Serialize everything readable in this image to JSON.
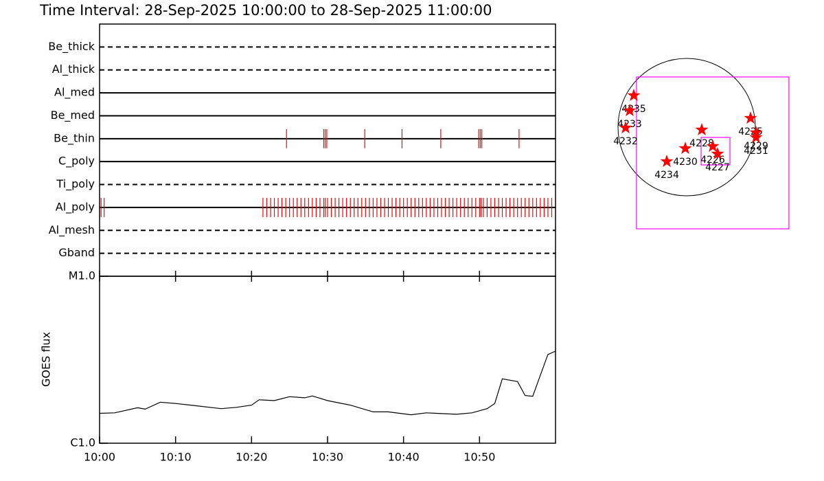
{
  "chart_data": [
    {
      "type": "timeline",
      "title": "Time Interval: 28-Sep-2025 10:00:00 to 28-Sep-2025 11:00:00",
      "xlim": [
        0,
        60
      ],
      "event_color": "#ff0000",
      "rows": [
        {
          "name": "Be_thick",
          "style": "dashed",
          "events": []
        },
        {
          "name": "Al_thick",
          "style": "dashed",
          "events": []
        },
        {
          "name": "Al_med",
          "style": "solid",
          "events": []
        },
        {
          "name": "Be_med",
          "style": "solid",
          "events": []
        },
        {
          "name": "Be_thin",
          "style": "solid",
          "events": [
            24.6,
            29.5,
            29.7,
            29.9,
            34.9,
            39.8,
            44.9,
            49.9,
            50.1,
            50.3,
            55.2
          ]
        },
        {
          "name": "C_poly",
          "style": "solid",
          "events": []
        },
        {
          "name": "Ti_poly",
          "style": "dashed",
          "events": []
        },
        {
          "name": "Al_poly",
          "style": "solid",
          "events": [
            0.2,
            0.6,
            21.5,
            22.0,
            22.5,
            23.0,
            23.5,
            24.0,
            24.5,
            25.0,
            25.5,
            26.0,
            26.5,
            27.0,
            27.5,
            28.0,
            28.5,
            29.0,
            29.5,
            29.7,
            30.0,
            30.5,
            31.0,
            31.5,
            32.0,
            32.5,
            33.0,
            33.5,
            34.0,
            34.5,
            35.0,
            35.5,
            36.0,
            36.5,
            37.0,
            37.5,
            38.0,
            38.5,
            39.0,
            39.5,
            40.0,
            40.5,
            41.0,
            41.5,
            42.0,
            42.5,
            43.0,
            43.5,
            44.0,
            44.5,
            45.0,
            45.5,
            46.0,
            46.5,
            47.0,
            47.5,
            48.0,
            48.5,
            49.0,
            49.5,
            50.0,
            50.2,
            50.5,
            51.0,
            51.5,
            52.0,
            52.5,
            53.0,
            53.5,
            54.0,
            54.5,
            55.0,
            55.5,
            56.0,
            56.5,
            57.0,
            57.5,
            58.0,
            58.5,
            59.0,
            59.5
          ]
        },
        {
          "name": "Al_mesh",
          "style": "dashed",
          "events": []
        },
        {
          "name": "Gband",
          "style": "dashed",
          "events": []
        }
      ]
    },
    {
      "type": "line",
      "ylabel": "GOES flux",
      "log": true,
      "color": "#000000",
      "xlim": [
        0,
        60
      ],
      "xticks": [
        {
          "value": 0,
          "label": "10:00"
        },
        {
          "value": 10,
          "label": "10:10"
        },
        {
          "value": 20,
          "label": "10:20"
        },
        {
          "value": 30,
          "label": "10:30"
        },
        {
          "value": 40,
          "label": "10:40"
        },
        {
          "value": 50,
          "label": "10:50"
        }
      ],
      "ylim": [
        1e-06,
        1e-05
      ],
      "yticks": [
        {
          "value": 1e-06,
          "label": "C1.0"
        },
        {
          "value": 1e-05,
          "label": "M1.0"
        }
      ],
      "x": [
        0,
        2,
        5,
        6,
        8,
        10,
        12,
        16,
        18,
        20,
        21,
        23,
        25,
        27,
        28,
        30,
        33,
        36,
        38,
        41,
        43,
        47,
        49,
        51,
        52,
        53,
        55,
        56,
        57,
        59,
        60
      ],
      "values": [
        1.51e-06,
        1.52e-06,
        1.63e-06,
        1.6e-06,
        1.76e-06,
        1.73e-06,
        1.69e-06,
        1.61e-06,
        1.64e-06,
        1.69e-06,
        1.82e-06,
        1.8e-06,
        1.9e-06,
        1.87e-06,
        1.92e-06,
        1.8e-06,
        1.69e-06,
        1.54e-06,
        1.54e-06,
        1.48e-06,
        1.52e-06,
        1.49e-06,
        1.52e-06,
        1.61e-06,
        1.73e-06,
        2.43e-06,
        2.34e-06,
        1.93e-06,
        1.91e-06,
        3.4e-06,
        3.56e-06
      ]
    },
    {
      "type": "map",
      "xlim": [
        -1056,
        1536
      ],
      "ylim": [
        -1536,
        1056
      ],
      "disk_radius": 960,
      "star_color": "#ff0000",
      "box_color": "#ff00ff",
      "regions": [
        {
          "label": "4235",
          "x": -739,
          "y": 442
        },
        {
          "label": "4233",
          "x": -797,
          "y": 230
        },
        {
          "label": "4232",
          "x": -854,
          "y": -10
        },
        {
          "label": "4228",
          "x": 211,
          "y": -38
        },
        {
          "label": "4230",
          "x": -19,
          "y": -298
        },
        {
          "label": "4234",
          "x": -278,
          "y": -480
        },
        {
          "label": "4226",
          "x": 365,
          "y": -269
        },
        {
          "label": "4227",
          "x": 432,
          "y": -374
        },
        {
          "label": "4225",
          "x": 893,
          "y": 125
        },
        {
          "label": "4229",
          "x": 970,
          "y": -77
        },
        {
          "label": "4231",
          "x": 970,
          "y": -144
        }
      ],
      "boxes": [
        {
          "x0": -701,
          "x1": 1430,
          "y0": -1421,
          "y1": 701
        },
        {
          "x0": 202,
          "x1": 605,
          "y0": -528,
          "y1": -144
        }
      ]
    }
  ]
}
